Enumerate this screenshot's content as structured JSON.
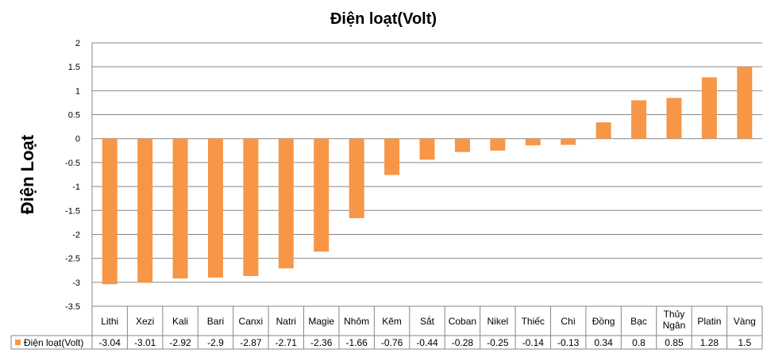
{
  "chart_data": {
    "type": "bar",
    "title": "Điện loạt(Volt)",
    "xlabel": "",
    "ylabel": "Điện Loạt",
    "ylim": [
      -3.5,
      2
    ],
    "yticks": [
      2,
      1.5,
      1,
      0.5,
      0,
      -0.5,
      -1,
      -1.5,
      -2,
      -2.5,
      -3,
      -3.5
    ],
    "grid": true,
    "legend": "data-table-left",
    "bar_color": "#F79646",
    "categories": [
      "Lithi",
      "Xezi",
      "Kali",
      "Bari",
      "Canxi",
      "Natri",
      "Magie",
      "Nhôm",
      "Kẽm",
      "Sắt",
      "Coban",
      "Nikel",
      "Thiếc",
      "Chì",
      "Đồng",
      "Bạc",
      "Thủy Ngân",
      "Platin",
      "Vàng"
    ],
    "series": [
      {
        "name": "Điện loạt(Volt)",
        "values": [
          -3.04,
          -3.01,
          -2.92,
          -2.9,
          -2.87,
          -2.71,
          -2.36,
          -1.66,
          -0.76,
          -0.44,
          -0.28,
          -0.25,
          -0.14,
          -0.13,
          0.34,
          0.8,
          0.85,
          1.28,
          1.5
        ],
        "value_labels": [
          "-3.04",
          "-3.01",
          "-2.92",
          "-2.9",
          "-2.87",
          "-2.71",
          "-2.36",
          "-1.66",
          "-0.76",
          "-0.44",
          "-0.28",
          "-0.25",
          "-0.14",
          "-0.13",
          "0.34",
          "0.8",
          "0.85",
          "1.28",
          "1.5"
        ]
      }
    ]
  }
}
